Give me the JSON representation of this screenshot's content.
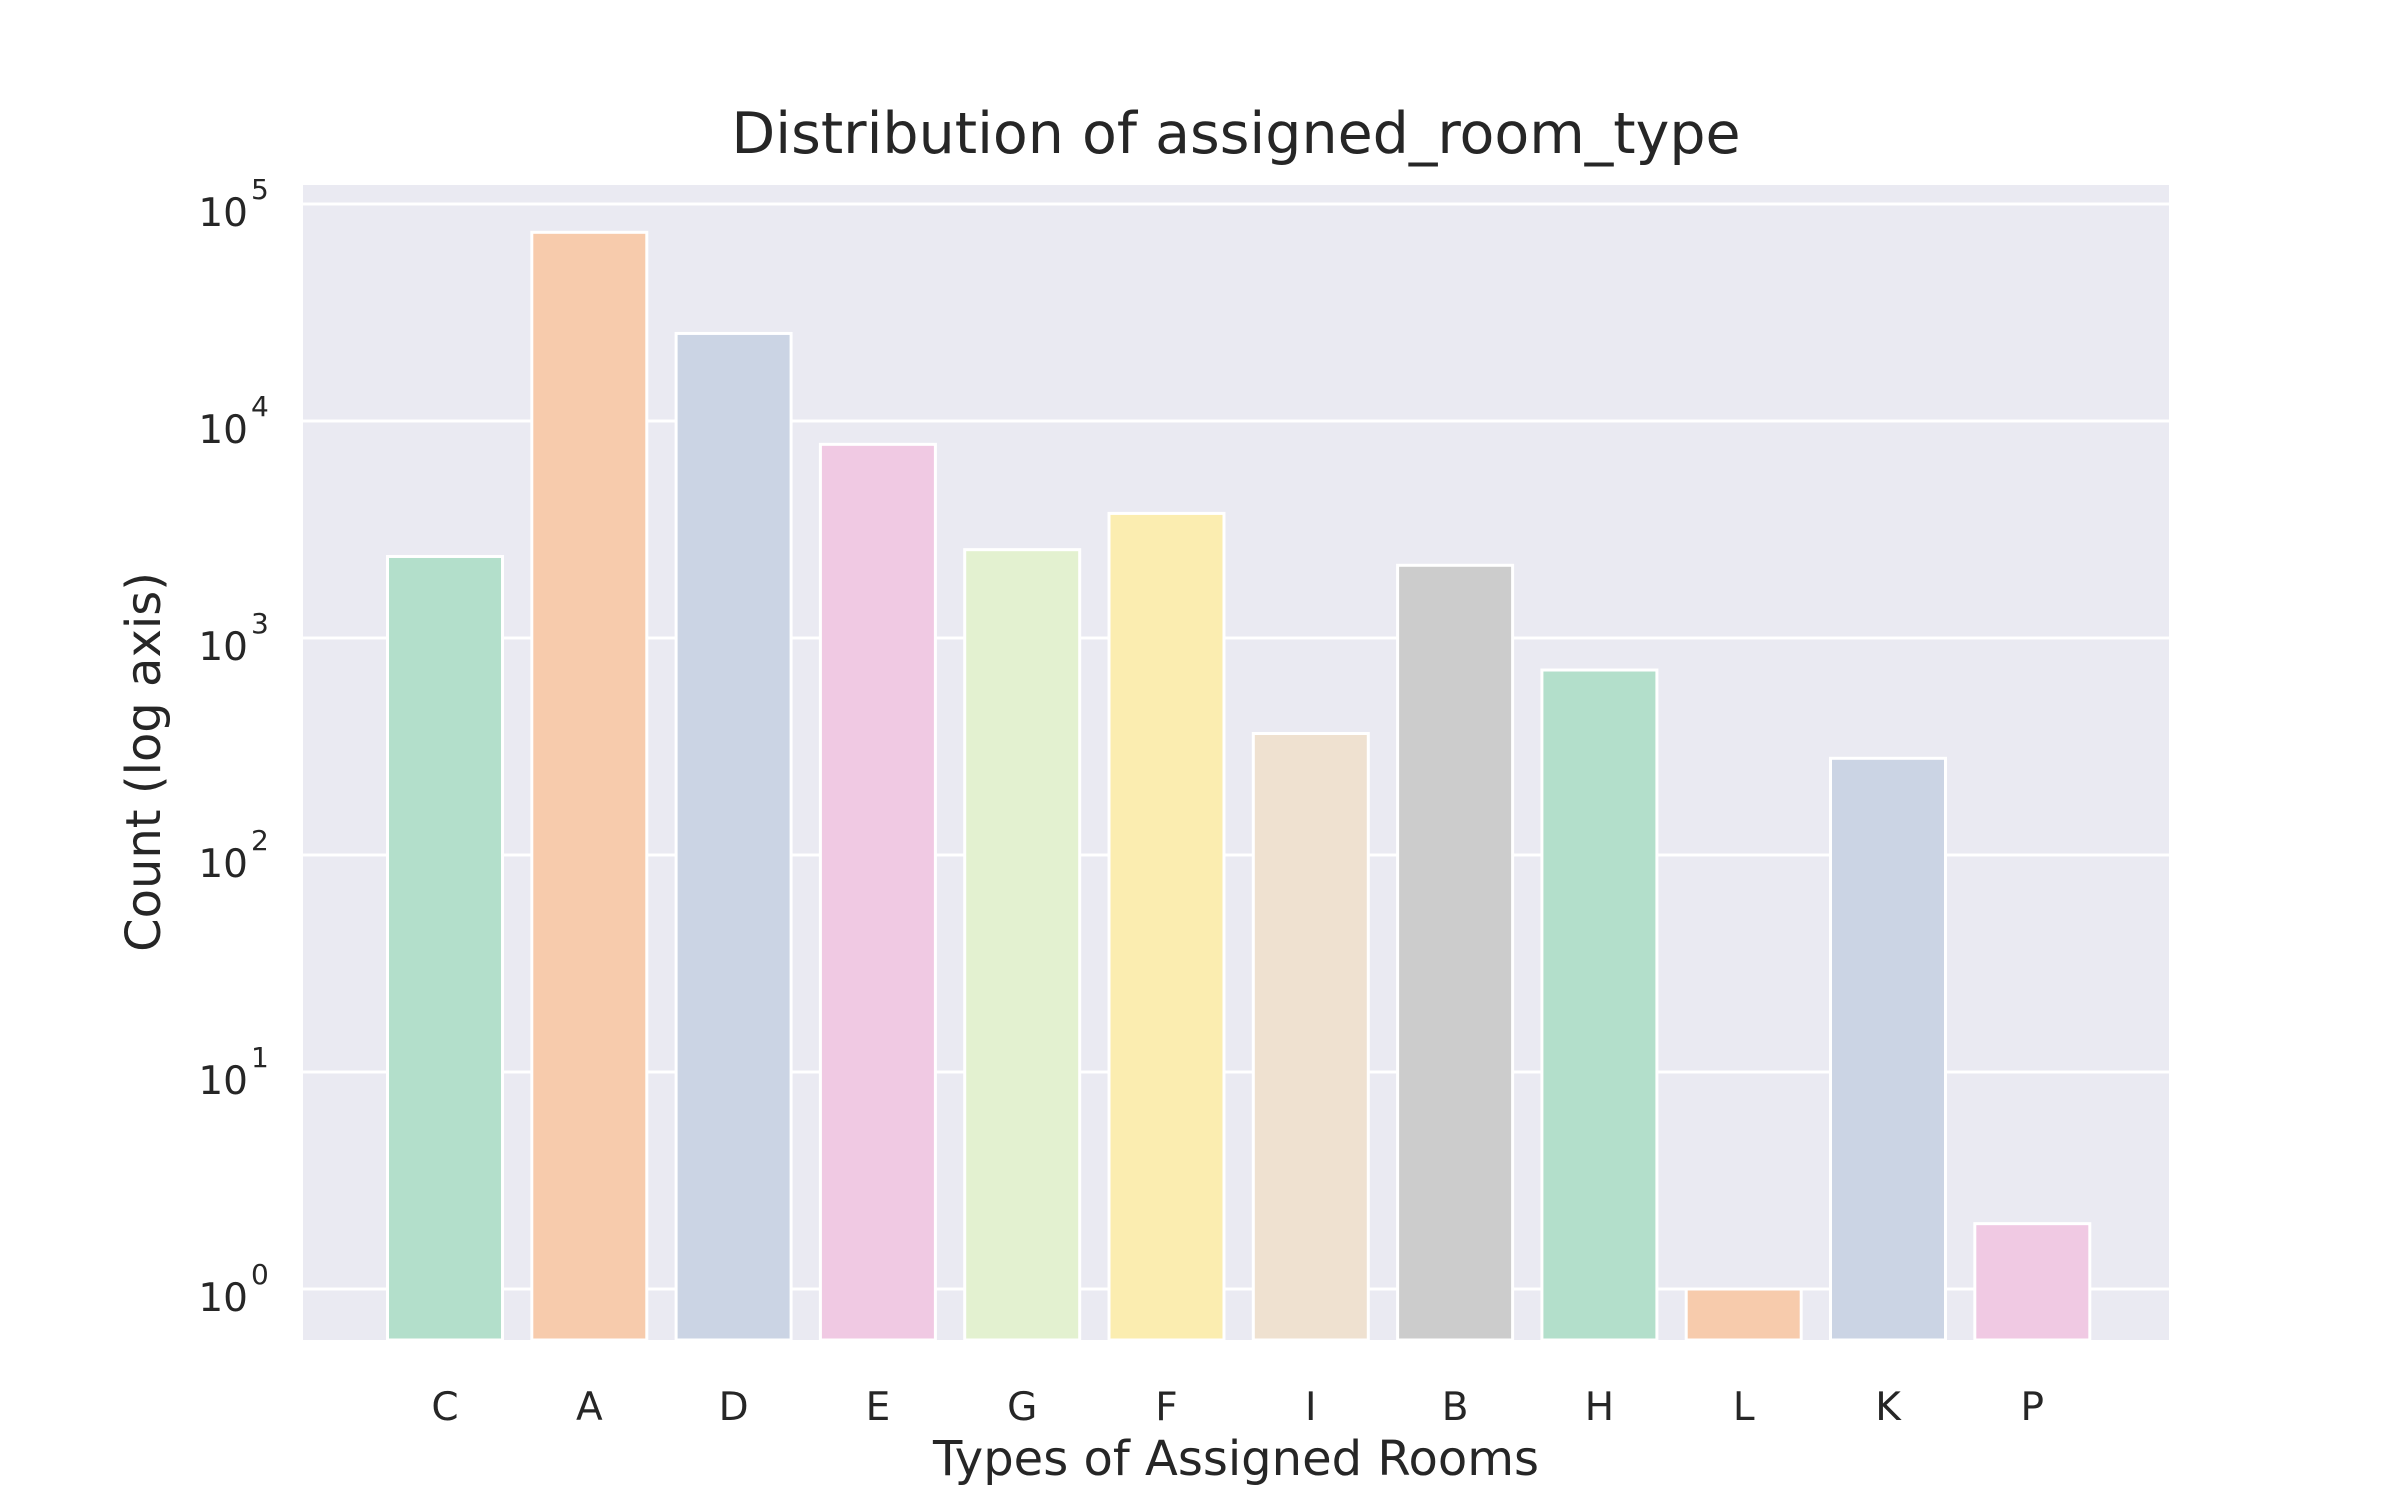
{
  "chart_data": {
    "type": "bar",
    "title": "Distribution of assigned_room_type",
    "xlabel": "Types of Assigned Rooms",
    "ylabel": "Count (log axis)",
    "y_scale": "log",
    "ylim": [
      0.6,
      120000
    ],
    "y_ticks": [
      {
        "value": 1,
        "base": "10",
        "exp": "0"
      },
      {
        "value": 10,
        "base": "10",
        "exp": "1"
      },
      {
        "value": 100,
        "base": "10",
        "exp": "2"
      },
      {
        "value": 1000,
        "base": "10",
        "exp": "3"
      },
      {
        "value": 10000,
        "base": "10",
        "exp": "4"
      },
      {
        "value": 100000,
        "base": "10",
        "exp": "5"
      }
    ],
    "grid": true,
    "background_color": "#eaeaf2",
    "categories": [
      "C",
      "A",
      "D",
      "E",
      "G",
      "F",
      "I",
      "B",
      "H",
      "L",
      "K",
      "P"
    ],
    "values": [
      2375,
      74053,
      25322,
      7806,
      2553,
      3751,
      363,
      2163,
      712,
      1,
      279,
      2
    ],
    "colors": [
      "#b3dfcb",
      "#f7cbac",
      "#cbd4e4",
      "#f0c9e3",
      "#e3f1d0",
      "#fbedb0",
      "#efe1d0",
      "#cccccc",
      "#b3dfcb",
      "#f7cbac",
      "#cbd4e4",
      "#f0c9e3"
    ]
  }
}
